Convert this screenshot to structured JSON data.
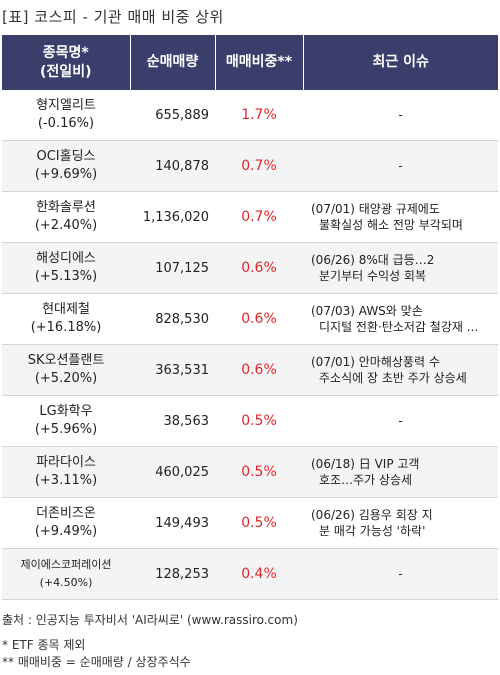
{
  "title": "[표] 코스피 - 기관 매매 비중 상위",
  "header": {
    "col1_line1": "종목명*",
    "col1_line2": "(전일비)",
    "col2": "순매매량",
    "col3": "매매비중**",
    "col4": "최근 이슈"
  },
  "rows": [
    {
      "name": "형지엘리트",
      "change": "(-0.16%)",
      "volume": "655,889",
      "ratio": "1.7%",
      "issue1": "-",
      "issue2": ""
    },
    {
      "name": "OCI홀딩스",
      "change": "(+9.69%)",
      "volume": "140,878",
      "ratio": "0.7%",
      "issue1": "-",
      "issue2": ""
    },
    {
      "name": "한화솔루션",
      "change": "(+2.40%)",
      "volume": "1,136,020",
      "ratio": "0.7%",
      "issue1": "(07/01) 태양광 규제에도",
      "issue2": "불확실성 해소 전망 부각되며"
    },
    {
      "name": "해성디에스",
      "change": "(+5.13%)",
      "volume": "107,125",
      "ratio": "0.6%",
      "issue1": "(06/26) 8%대 급등…2",
      "issue2": "분기부터 수익성 회복"
    },
    {
      "name": "현대제철",
      "change": "(+16.18%)",
      "volume": "828,530",
      "ratio": "0.6%",
      "issue1": "(07/03) AWS와 맞손",
      "issue2": "디지털 전환·탄소저감 철강재 ..."
    },
    {
      "name": "SK오션플랜트",
      "change": "(+5.20%)",
      "volume": "363,531",
      "ratio": "0.6%",
      "issue1": "(07/01) 안마해상풍력 수",
      "issue2": "주소식에 장 초반 주가 상승세"
    },
    {
      "name": "LG화학우",
      "change": "(+5.96%)",
      "volume": "38,563",
      "ratio": "0.5%",
      "issue1": "-",
      "issue2": ""
    },
    {
      "name": "파라다이스",
      "change": "(+3.11%)",
      "volume": "460,025",
      "ratio": "0.5%",
      "issue1": "(06/18) 日 VIP 고객",
      "issue2": "호조…주가 상승세"
    },
    {
      "name": "더존비즈온",
      "change": "(+9.49%)",
      "volume": "149,493",
      "ratio": "0.5%",
      "issue1": "(06/26) 김용우 회장 지",
      "issue2": "분 매각 가능성 '하락'"
    },
    {
      "name": "제이에스코퍼레이션",
      "change": "(+4.50%)",
      "volume": "128,253",
      "ratio": "0.4%",
      "issue1": "-",
      "issue2": ""
    }
  ],
  "footer": {
    "source": "출처 : 인공지능 투자비서 'AI라씨로' (www.rassiro.com)",
    "note1": "* ETF 종목 제외",
    "note2": "** 매매비중 = 순매매량 / 상장주식수"
  },
  "colors": {
    "header_bg": "#3a3e6b",
    "ratio_text": "#e0272c",
    "alt_row_bg": "#f4f4f4"
  }
}
